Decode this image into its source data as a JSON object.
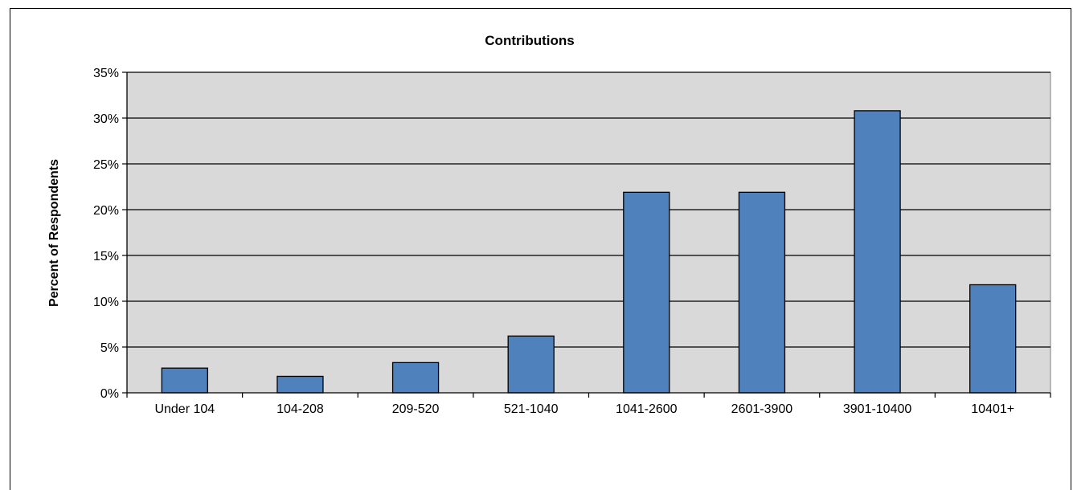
{
  "chart_data": {
    "type": "bar",
    "title": "Contributions",
    "xlabel": "",
    "ylabel": "Percent of Respondents",
    "categories": [
      "Under 104",
      "104-208",
      "209-520",
      "521-1040",
      "1041-2600",
      "2601-3900",
      "3901-10400",
      "10401+"
    ],
    "values": [
      2.7,
      1.8,
      3.3,
      6.2,
      21.9,
      21.9,
      30.8,
      11.8
    ],
    "ylim": [
      0,
      35
    ],
    "yticks": [
      0,
      5,
      10,
      15,
      20,
      25,
      30,
      35
    ],
    "ytick_labels": [
      "0%",
      "5%",
      "10%",
      "15%",
      "20%",
      "25%",
      "30%",
      "35%"
    ],
    "grid": true,
    "legend": "none",
    "colors": {
      "bar_fill": "#4f81bd",
      "bar_stroke": "#000000",
      "plot_background": "#d9d9d9",
      "gridline": "#000000"
    }
  }
}
